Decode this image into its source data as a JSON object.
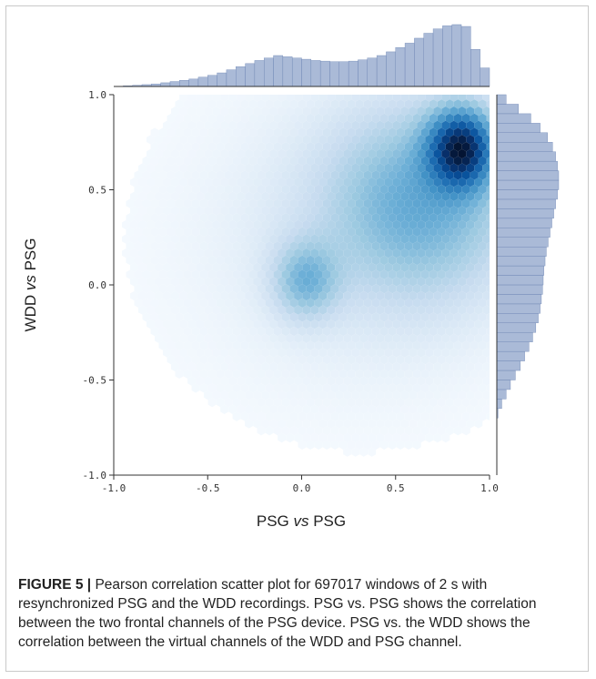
{
  "chart_data": {
    "type": "heatmap",
    "subtype": "hexbin-jointplot",
    "xlabel": {
      "prefix": "PSG ",
      "italic": "vs",
      "suffix": " PSG"
    },
    "ylabel": {
      "prefix": "WDD ",
      "italic": "vs",
      "suffix": " PSG"
    },
    "xlim": [
      -1.0,
      1.0
    ],
    "ylim": [
      -1.0,
      1.0
    ],
    "x_ticks": [
      "-1.0",
      "-0.5",
      "0.0",
      "0.5",
      "1.0"
    ],
    "y_ticks": [
      "-1.0",
      "-0.5",
      "0.0",
      "0.5",
      "1.0"
    ],
    "x_tick_values": [
      -1.0,
      -0.5,
      0.0,
      0.5,
      1.0
    ],
    "y_tick_values": [
      -1.0,
      -0.5,
      0.0,
      0.5,
      1.0
    ],
    "colormap": "Blues",
    "marginal_color": "#8ea3c9",
    "density_components": [
      {
        "x": 0.85,
        "y": 0.72,
        "sx": 0.12,
        "sy": 0.14,
        "weight": 1.0
      },
      {
        "x": 0.65,
        "y": 0.45,
        "sx": 0.35,
        "sy": 0.35,
        "weight": 0.45
      },
      {
        "x": 0.02,
        "y": 0.02,
        "sx": 0.12,
        "sy": 0.14,
        "weight": 0.38
      },
      {
        "x": 0.3,
        "y": 0.25,
        "sx": 0.55,
        "sy": 0.5,
        "weight": 0.12
      }
    ],
    "x_marginal": {
      "bins": [
        -1.0,
        -0.95,
        -0.9,
        -0.85,
        -0.8,
        -0.75,
        -0.7,
        -0.65,
        -0.6,
        -0.55,
        -0.5,
        -0.45,
        -0.4,
        -0.35,
        -0.3,
        -0.25,
        -0.2,
        -0.15,
        -0.1,
        -0.05,
        0.0,
        0.05,
        0.1,
        0.15,
        0.2,
        0.25,
        0.3,
        0.35,
        0.4,
        0.45,
        0.5,
        0.55,
        0.6,
        0.65,
        0.7,
        0.75,
        0.8,
        0.85,
        0.9,
        0.95
      ],
      "counts": [
        0.0,
        0.01,
        0.02,
        0.03,
        0.04,
        0.06,
        0.08,
        0.1,
        0.12,
        0.15,
        0.18,
        0.22,
        0.27,
        0.32,
        0.37,
        0.42,
        0.46,
        0.5,
        0.48,
        0.46,
        0.44,
        0.42,
        0.41,
        0.4,
        0.4,
        0.41,
        0.43,
        0.46,
        0.5,
        0.56,
        0.63,
        0.7,
        0.78,
        0.86,
        0.93,
        0.98,
        1.0,
        0.97,
        0.6,
        0.3
      ]
    },
    "y_marginal": {
      "bins": [
        -1.0,
        -0.95,
        -0.9,
        -0.85,
        -0.8,
        -0.75,
        -0.7,
        -0.65,
        -0.6,
        -0.55,
        -0.5,
        -0.45,
        -0.4,
        -0.35,
        -0.3,
        -0.25,
        -0.2,
        -0.15,
        -0.1,
        -0.05,
        0.0,
        0.05,
        0.1,
        0.15,
        0.2,
        0.25,
        0.3,
        0.35,
        0.4,
        0.45,
        0.5,
        0.55,
        0.6,
        0.65,
        0.7,
        0.75,
        0.8,
        0.85,
        0.9,
        0.95
      ],
      "counts": [
        0.0,
        0.0,
        0.0,
        0.0,
        0.0,
        0.0,
        0.02,
        0.08,
        0.15,
        0.22,
        0.3,
        0.38,
        0.45,
        0.52,
        0.58,
        0.63,
        0.67,
        0.7,
        0.72,
        0.74,
        0.75,
        0.76,
        0.78,
        0.8,
        0.83,
        0.86,
        0.89,
        0.92,
        0.95,
        0.98,
        1.0,
        1.0,
        0.98,
        0.95,
        0.9,
        0.82,
        0.7,
        0.55,
        0.35,
        0.15
      ]
    }
  },
  "caption": {
    "label": "FIGURE 5 |",
    "text": " Pearson correlation scatter plot for 697017 windows of 2 s with resynchronized PSG and the WDD recordings. PSG vs. PSG shows the correlation between the two frontal channels of the PSG device. PSG vs. the WDD shows the correlation between the virtual channels of the WDD and PSG channel."
  }
}
